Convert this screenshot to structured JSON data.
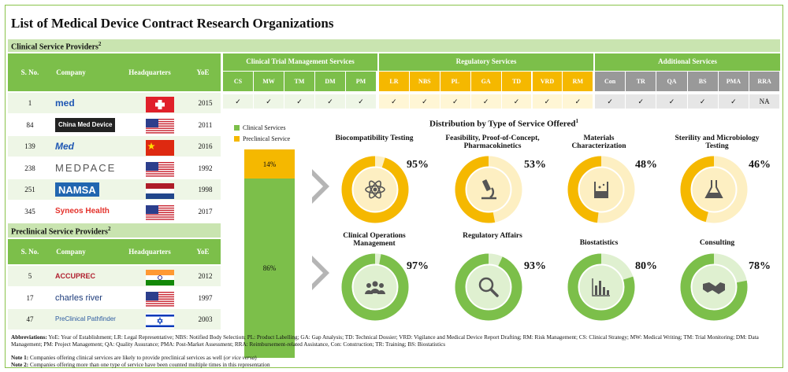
{
  "title": "List of Medical Device Contract Research Organizations",
  "clinical_band": "Clinical Service Providers",
  "preclinical_band": "Preclinical Service Providers",
  "band_sup": "2",
  "columns": {
    "sno": "S. No.",
    "company": "Company",
    "hq": "Headquarters",
    "yoe": "YoE"
  },
  "groups": {
    "ctm": "Clinical Trial Management Services",
    "reg": "Regulatory Services",
    "add": "Additional Services"
  },
  "services": {
    "ctm": [
      "CS",
      "MW",
      "TM",
      "DM",
      "PM"
    ],
    "reg": [
      "LR",
      "NBS",
      "PL",
      "GA",
      "TD",
      "VRD",
      "RM"
    ],
    "add": [
      "Con",
      "TR",
      "QA",
      "BS",
      "PMA",
      "RRA"
    ]
  },
  "first_row_checks": {
    "ctm": [
      "✓",
      "✓",
      "✓",
      "✓",
      "✓"
    ],
    "reg": [
      "✓",
      "✓",
      "✓",
      "✓",
      "✓",
      "✓",
      "✓"
    ],
    "add": [
      "✓",
      "✓",
      "✓",
      "✓",
      "✓",
      "NA"
    ]
  },
  "clinical_rows": [
    {
      "sno": "1",
      "company": "med",
      "flag": "switzerland",
      "yoe": "2015"
    },
    {
      "sno": "84",
      "company": "China Med Device",
      "flag": "usa",
      "yoe": "2011"
    },
    {
      "sno": "139",
      "company": "Med",
      "flag": "china",
      "yoe": "2016"
    },
    {
      "sno": "238",
      "company": "MEDPACE",
      "flag": "usa",
      "yoe": "1992"
    },
    {
      "sno": "251",
      "company": "NAMSA",
      "flag": "netherlands",
      "yoe": "1998"
    },
    {
      "sno": "345",
      "company": "Syneos Health",
      "flag": "usa",
      "yoe": "2017"
    }
  ],
  "preclinical_rows": [
    {
      "sno": "5",
      "company": "ACCUPREC",
      "flag": "india",
      "yoe": "2012"
    },
    {
      "sno": "17",
      "company": "charles river",
      "flag": "usa",
      "yoe": "1997"
    },
    {
      "sno": "47",
      "company": "PreClinical Pathfinder",
      "flag": "israel",
      "yoe": "2003"
    }
  ],
  "distribution": {
    "title": "Distribution  by Type of Service Offered",
    "title_sup": "1",
    "legend": [
      "Clinical Services",
      "Preclinical Service"
    ],
    "stack": {
      "clinical_pct": 86,
      "preclinical_pct": 14,
      "clinical_label": "86%",
      "preclinical_label": "14%"
    },
    "donuts": [
      {
        "label": "Biocompatibility Testing",
        "value": 95,
        "text": "95%",
        "type": "preclinical",
        "icon": "atom-icon"
      },
      {
        "label": "Feasibility, Proof-of-Concept, Pharmacokinetics",
        "value": 53,
        "text": "53%",
        "type": "preclinical",
        "icon": "microscope-icon"
      },
      {
        "label": "Materials Characterization",
        "value": 48,
        "text": "48%",
        "type": "preclinical",
        "icon": "beaker-icon"
      },
      {
        "label": "Sterility and Microbiology  Testing",
        "value": 46,
        "text": "46%",
        "type": "preclinical",
        "icon": "flask-icon"
      },
      {
        "label": "Clinical Operations Management",
        "value": 97,
        "text": "97%",
        "type": "clinical",
        "icon": "team-icon"
      },
      {
        "label": "Regulatory Affairs",
        "value": 93,
        "text": "93%",
        "type": "clinical",
        "icon": "magnifier-icon"
      },
      {
        "label": "Biostatistics",
        "value": 80,
        "text": "80%",
        "type": "clinical",
        "icon": "bar-chart-icon"
      },
      {
        "label": "Consulting",
        "value": 78,
        "text": "78%",
        "type": "clinical",
        "icon": "handshake-icon"
      }
    ]
  },
  "colors": {
    "green": "#7cbf4a",
    "yellow": "#f5b800",
    "light_green": "#dff0d0",
    "light_yellow": "#fdefc2"
  },
  "footnotes": {
    "abbr_label": "Abbreviations:",
    "abbr": " YoE: Year of Establishment; LR: Legal Representative; NBS: Notified Body Selection; PL: Product Labelling; GA: Gap Analysis; TD: Technical Dossier; VRD: Vigilance and Medical Device Report Drafting; RM: Risk Management; CS: Clinical Strategy; MW: Medical Writing; TM: Trial Monitoring; DM: Data Management; PM: Project Management; QA: Quality Assurance; PMA: Post-Market Assessment; RRA: Reimbursement-related Assistance, Con: Construction; TR: Training; BS: Biostatistics",
    "note1_label": "Note 1:",
    "note1": " Companies offering clinical services are likely to provide preclinical services as well (",
    "note1_italic": "or vice versa",
    "note1_end": ")",
    "note2_label": "Note 2:",
    "note2": " Companies offering more than one type of service have been counted multiple times in this representation"
  }
}
